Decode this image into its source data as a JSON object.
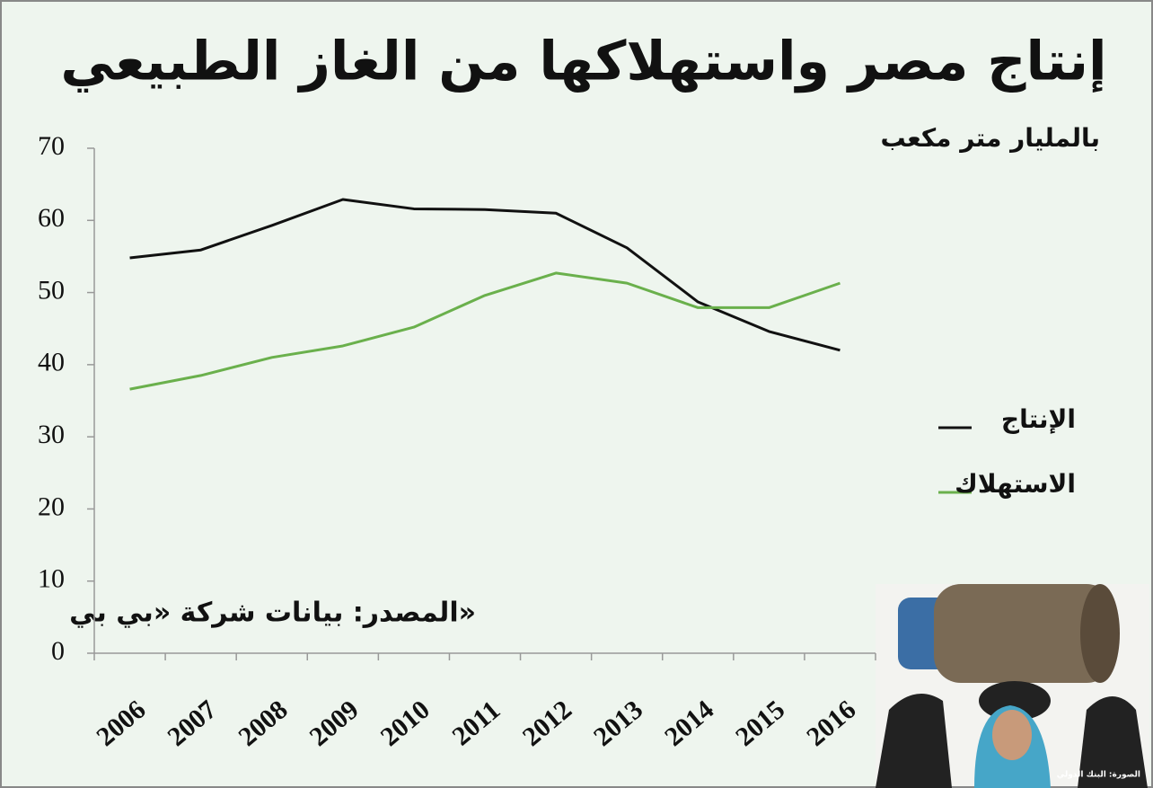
{
  "chart_data": {
    "type": "line",
    "title": "إنتاج مصر واستهلاكها من الغاز الطبيعي",
    "subtitle": "بالمليار متر مكعب",
    "source": "المصدر: بيانات شركة «بي بي»",
    "photo_credit": "الصورة: البنك الدولي",
    "categories": [
      "2006",
      "2007",
      "2008",
      "2009",
      "2010",
      "2011",
      "2012",
      "2013",
      "2014",
      "2015",
      "2016"
    ],
    "series": [
      {
        "name": "الإنتاج",
        "color": "#111111",
        "values": [
          54.8,
          55.9,
          59.3,
          62.9,
          61.6,
          61.5,
          61.0,
          56.2,
          48.7,
          44.6,
          42.0
        ]
      },
      {
        "name": "الاستهلاك",
        "color": "#6ab04c",
        "values": [
          36.6,
          38.5,
          41.0,
          42.6,
          45.2,
          49.6,
          52.7,
          51.3,
          47.9,
          47.9,
          51.3
        ]
      }
    ],
    "ylim": [
      0,
      70
    ],
    "yticks": [
      0,
      10,
      20,
      30,
      40,
      50,
      60,
      70
    ],
    "grid": false
  }
}
